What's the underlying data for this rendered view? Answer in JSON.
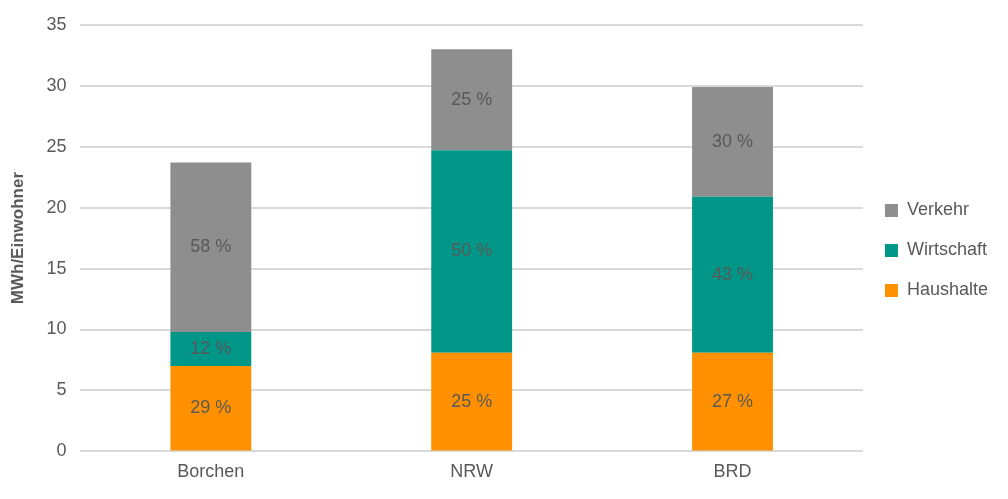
{
  "chart_data": {
    "type": "bar",
    "stacked": true,
    "ylabel": "MWh/Einwohner",
    "categories": [
      "Borchen",
      "NRW",
      "BRD"
    ],
    "series": [
      {
        "name": "Haushalte",
        "color": "#ff9100",
        "values": [
          7.0,
          8.1,
          8.1
        ]
      },
      {
        "name": "Wirtschaft",
        "color": "#009688",
        "values": [
          2.8,
          16.6,
          12.8
        ]
      },
      {
        "name": "Verkehr",
        "color": "#8e8e8e",
        "values": [
          13.9,
          8.3,
          9.0
        ]
      }
    ],
    "annotations": [
      "29 %",
      "12 %",
      "58 %",
      "25 %",
      "50 %",
      "25 %",
      "27 %",
      "43 %",
      "30 %"
    ],
    "ylim": [
      0,
      35
    ],
    "yticks": [
      0,
      5,
      10,
      15,
      20,
      25,
      30,
      35
    ],
    "grid": "y",
    "legend": "right"
  }
}
